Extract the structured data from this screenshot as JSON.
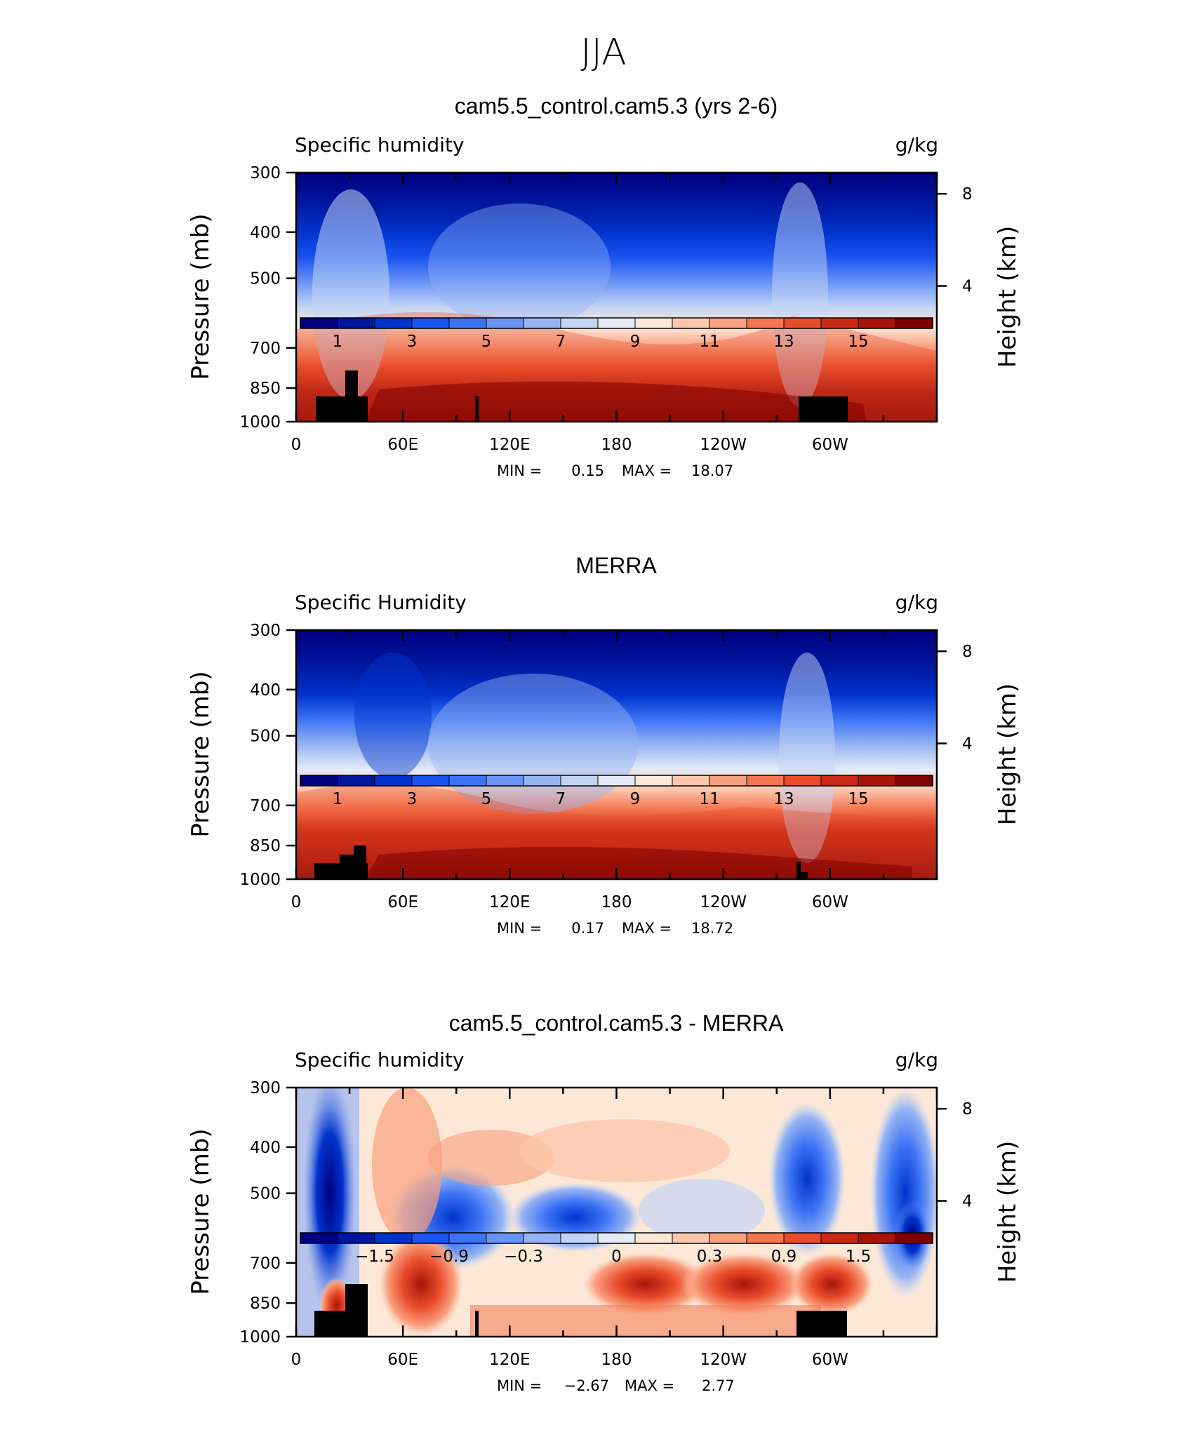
{
  "figure_title": "JJA",
  "chart_data": [
    {
      "type": "heatmap",
      "title": "cam5.5_control.cam5.3 (yrs 2-6)",
      "left_label": "Specific humidity",
      "right_label": "g/kg",
      "ylabel": "Pressure (mb)",
      "ylabel_right": "Height (km)",
      "yticks": [
        "300",
        "400",
        "500",
        "700",
        "850",
        "1000"
      ],
      "yticks_right": [
        "8",
        "4"
      ],
      "xticks": [
        "0",
        "60E",
        "120E",
        "180",
        "120W",
        "60W"
      ],
      "min_label": "MIN =",
      "min_value": "0.15",
      "max_label": "MAX =",
      "max_value": "18.07",
      "colorbar_ticks": [
        "1",
        "3",
        "5",
        "7",
        "9",
        "11",
        "13",
        "15"
      ],
      "colorbar_colors": [
        "#000080",
        "#00169e",
        "#0033cc",
        "#1a53f0",
        "#3d74f5",
        "#6a93f5",
        "#97b4f2",
        "#c3d5f5",
        "#e4ebf5",
        "#fde8d8",
        "#fcc7ad",
        "#f9a07e",
        "#f47650",
        "#e94c2a",
        "#cc2a14",
        "#a8140a",
        "#800000"
      ]
    },
    {
      "type": "heatmap",
      "title": "MERRA",
      "left_label": "Specific Humidity",
      "right_label": "g/kg",
      "ylabel": "Pressure (mb)",
      "ylabel_right": "Height (km)",
      "yticks": [
        "300",
        "400",
        "500",
        "700",
        "850",
        "1000"
      ],
      "yticks_right": [
        "8",
        "4"
      ],
      "xticks": [
        "0",
        "60E",
        "120E",
        "180",
        "120W",
        "60W"
      ],
      "min_label": "MIN =",
      "min_value": "0.17",
      "max_label": "MAX =",
      "max_value": "18.72",
      "colorbar_ticks": [
        "1",
        "3",
        "5",
        "7",
        "9",
        "11",
        "13",
        "15"
      ],
      "colorbar_colors": [
        "#000080",
        "#00169e",
        "#0033cc",
        "#1a53f0",
        "#3d74f5",
        "#6a93f5",
        "#97b4f2",
        "#c3d5f5",
        "#e4ebf5",
        "#fde8d8",
        "#fcc7ad",
        "#f9a07e",
        "#f47650",
        "#e94c2a",
        "#cc2a14",
        "#a8140a",
        "#800000"
      ]
    },
    {
      "type": "heatmap",
      "title": "cam5.5_control.cam5.3 - MERRA",
      "left_label": "Specific humidity",
      "right_label": "g/kg",
      "ylabel": "Pressure (mb)",
      "ylabel_right": "Height (km)",
      "yticks": [
        "300",
        "400",
        "500",
        "700",
        "850",
        "1000"
      ],
      "yticks_right": [
        "8",
        "4"
      ],
      "xticks": [
        "0",
        "60E",
        "120E",
        "180",
        "120W",
        "60W"
      ],
      "min_label": "MIN =",
      "min_value": "−2.67",
      "max_label": "MAX =",
      "max_value": "2.77",
      "colorbar_ticks": [
        "−1.5",
        "−0.9",
        "−0.3",
        "0",
        "0.3",
        "0.9",
        "1.5"
      ],
      "colorbar_colors": [
        "#000080",
        "#00169e",
        "#0033cc",
        "#1a53f0",
        "#3d74f5",
        "#6a93f5",
        "#97b4f2",
        "#c3d5f5",
        "#e4ebf5",
        "#fde8d8",
        "#fcc7ad",
        "#f9a07e",
        "#f47650",
        "#e94c2a",
        "#cc2a14",
        "#a8140a",
        "#800000"
      ]
    }
  ]
}
